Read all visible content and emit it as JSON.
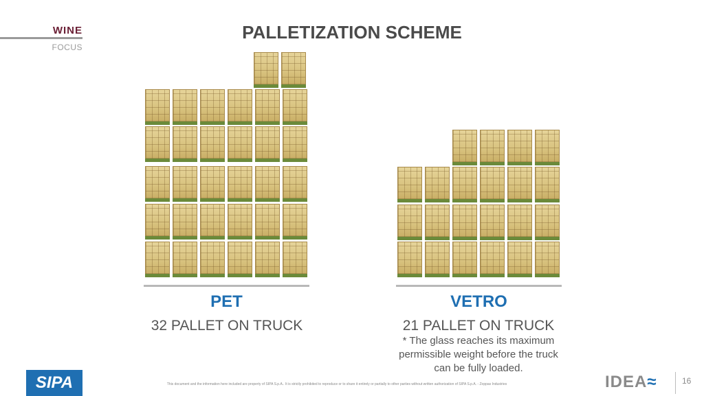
{
  "header": {
    "section": "WINE",
    "subsection": "FOCUS",
    "title": "PALLETIZATION SCHEME"
  },
  "pet": {
    "label": "PET",
    "pallets": "32 PALLET ON TRUCK"
  },
  "vetro": {
    "label": "VETRO",
    "pallets": "21 PALLET ON TRUCK",
    "note_line1": "* The glass reaches its maximum",
    "note_line2": "permissible weight before the truck",
    "note_line3": "can be fully loaded."
  },
  "footer": {
    "disclaimer": "This document and the information here included are property of SIPA S.p.A.. It is strictly prohibited to reproduce or to share it entirely or partially to other parties without written authorization of SIPA S.p.A. - Zoppas Industries",
    "page_number": "16"
  },
  "logos": {
    "sipa": "SIPA",
    "ideas": "IDEA"
  }
}
